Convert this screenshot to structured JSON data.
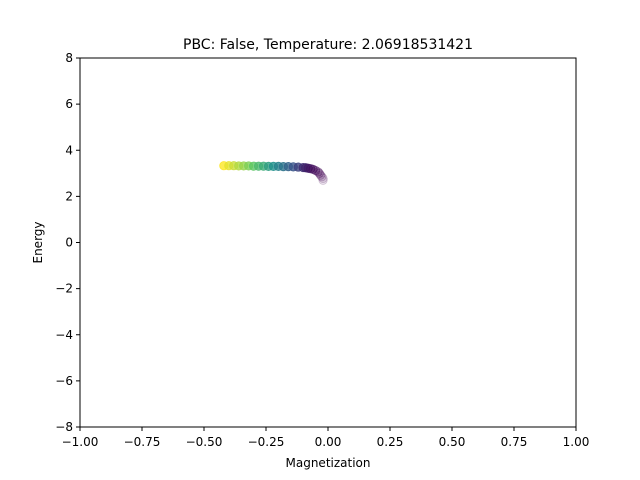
{
  "chart_data": {
    "type": "scatter",
    "title": "PBC: False, Temperature: 2.06918531421",
    "xlabel": "Magnetization",
    "ylabel": "Energy",
    "xlim": [
      -1.0,
      1.0
    ],
    "ylim": [
      -8,
      8
    ],
    "x_ticks": [
      "−1.00",
      "−0.75",
      "−0.50",
      "−0.25",
      "0.00",
      "0.25",
      "0.50",
      "0.75",
      "1.00"
    ],
    "x_tick_values": [
      -1.0,
      -0.75,
      -0.5,
      -0.25,
      0.0,
      0.25,
      0.5,
      0.75,
      1.0
    ],
    "y_ticks": [
      "−8",
      "−6",
      "−4",
      "−2",
      "0",
      "2",
      "4",
      "6",
      "8"
    ],
    "y_tick_values": [
      -8,
      -6,
      -4,
      -2,
      0,
      2,
      4,
      6,
      8
    ],
    "grid": false,
    "colormap": [
      "#440154",
      "#3b528b",
      "#21918c",
      "#5ec962",
      "#fde725"
    ],
    "series": [
      {
        "x": [
          -0.42,
          -0.4,
          -0.38,
          -0.36,
          -0.34,
          -0.32,
          -0.3,
          -0.28,
          -0.26,
          -0.24,
          -0.22,
          -0.2,
          -0.18,
          -0.16,
          -0.14,
          -0.12,
          -0.1,
          -0.09,
          -0.08,
          -0.07,
          -0.06,
          -0.05,
          -0.04,
          -0.035,
          -0.03,
          -0.025,
          -0.02,
          -0.02
        ],
        "y": [
          3.33,
          3.33,
          3.33,
          3.32,
          3.32,
          3.32,
          3.31,
          3.31,
          3.31,
          3.3,
          3.3,
          3.3,
          3.29,
          3.29,
          3.28,
          3.27,
          3.25,
          3.24,
          3.22,
          3.2,
          3.17,
          3.12,
          3.06,
          3.0,
          2.92,
          2.85,
          2.78,
          2.7
        ],
        "color_value": [
          1.0,
          0.96,
          0.92,
          0.88,
          0.84,
          0.8,
          0.74,
          0.68,
          0.62,
          0.56,
          0.5,
          0.44,
          0.38,
          0.32,
          0.26,
          0.2,
          0.14,
          0.11,
          0.08,
          0.06,
          0.04,
          0.03,
          0.02,
          0.015,
          0.01,
          0.005,
          0.0,
          0.0
        ],
        "alpha": [
          0.8,
          0.8,
          0.8,
          0.8,
          0.8,
          0.8,
          0.8,
          0.8,
          0.8,
          0.8,
          0.8,
          0.8,
          0.8,
          0.8,
          0.8,
          0.8,
          0.8,
          0.8,
          0.7,
          0.6,
          0.5,
          0.4,
          0.3,
          0.25,
          0.2,
          0.15,
          0.12,
          0.1
        ]
      }
    ]
  }
}
